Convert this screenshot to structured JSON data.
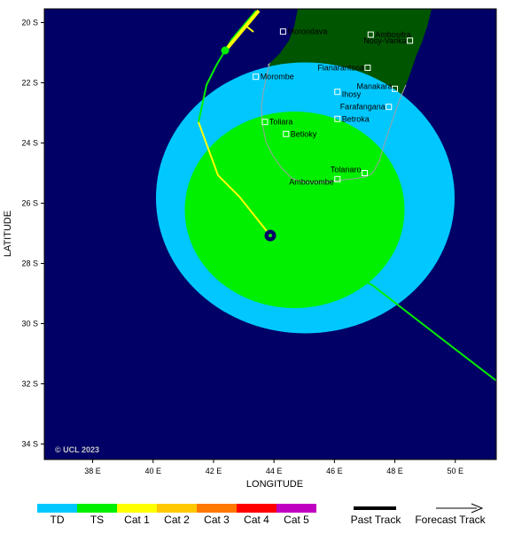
{
  "map": {
    "x_axis_label": "LONGITUDE",
    "y_axis_label": "LATITUDE",
    "x_ticks": [
      "38 E",
      "40 E",
      "42 E",
      "44 E",
      "46 E",
      "48 E",
      "50 E"
    ],
    "y_ticks": [
      "20 S",
      "22 S",
      "24 S",
      "26 S",
      "28 S",
      "30 S",
      "32 S",
      "34 S"
    ],
    "copyright": "© UCL 2023",
    "colors": {
      "ocean": "#000066",
      "land": "#005500",
      "td": "#00c8ff",
      "ts": "#00f000",
      "cat1": "#ffff00",
      "cat2": "#ffc800",
      "cat3": "#ff7800",
      "cat4": "#ff0000",
      "cat5": "#c000c0"
    },
    "cities": [
      {
        "name": "Morondava",
        "lon": 44.3,
        "lat": -20.3
      },
      {
        "name": "Ambositra",
        "lon": 47.2,
        "lat": -20.4
      },
      {
        "name": "Nosy-Varika",
        "lon": 48.5,
        "lat": -20.6
      },
      {
        "name": "Fianarantsoa",
        "lon": 47.1,
        "lat": -21.5
      },
      {
        "name": "Morombe",
        "lon": 43.4,
        "lat": -21.8
      },
      {
        "name": "Manakara",
        "lon": 48.0,
        "lat": -22.2
      },
      {
        "name": "Ihosy",
        "lon": 46.1,
        "lat": -22.3
      },
      {
        "name": "Farafangana",
        "lon": 47.8,
        "lat": -22.8
      },
      {
        "name": "Toliara",
        "lon": 43.7,
        "lat": -23.3
      },
      {
        "name": "Betroka",
        "lon": 46.1,
        "lat": -23.2
      },
      {
        "name": "Betioky",
        "lon": 44.4,
        "lat": -23.7
      },
      {
        "name": "Tolanaro",
        "lon": 47.0,
        "lat": -25.0
      },
      {
        "name": "Ambovombe",
        "lon": 46.1,
        "lat": -25.2
      }
    ],
    "storm_center": {
      "lon": 43.6,
      "lat": -27.0
    }
  },
  "legend": {
    "categories": [
      "TD",
      "TS",
      "Cat 1",
      "Cat 2",
      "Cat 3",
      "Cat 4",
      "Cat 5"
    ],
    "past_track": "Past Track",
    "forecast_track": "Forecast Track"
  }
}
